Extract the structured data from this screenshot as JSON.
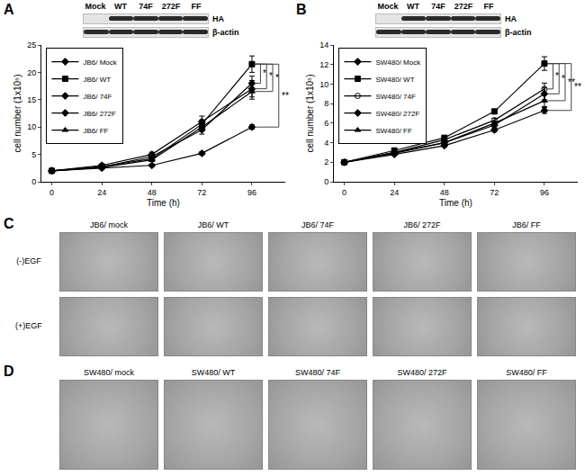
{
  "chart_data": [
    {
      "type": "line",
      "panel": "A",
      "x": [
        0,
        24,
        48,
        72,
        96
      ],
      "xlim": [
        -5,
        112
      ],
      "xticks": [
        0,
        24,
        48,
        72,
        96
      ],
      "ylim": [
        0,
        25
      ],
      "yticks": [
        0,
        5,
        10,
        15,
        20,
        25
      ],
      "x_label": "Time (h)",
      "y_label": "cell number (1x10⁵)",
      "legend": "upper left",
      "series": [
        {
          "name": "JB6/ Mock",
          "color": "#000000",
          "marker": "diamond",
          "values": [
            2,
            2.5,
            3,
            5.2,
            10
          ],
          "errors": [
            0.1,
            0.1,
            0.2,
            0.3,
            0.4
          ]
        },
        {
          "name": "JB6/ WT",
          "color": "#000000",
          "marker": "square",
          "values": [
            2,
            2.8,
            4.2,
            10.5,
            21.5
          ],
          "errors": [
            0.1,
            0.2,
            0.3,
            0.8,
            1.5
          ]
        },
        {
          "name": "JB6/ 74F",
          "color": "#000000",
          "marker": "diamond",
          "values": [
            2,
            2.7,
            4.6,
            9.5,
            18
          ],
          "errors": [
            0.1,
            0.2,
            0.4,
            0.8,
            1.3
          ]
        },
        {
          "name": "JB6/ 272F",
          "color": "#000000",
          "marker": "diamond",
          "values": [
            2,
            3,
            5,
            11,
            17
          ],
          "errors": [
            0.1,
            0.2,
            0.4,
            1,
            1.5
          ]
        },
        {
          "name": "JB6/ FF",
          "color": "#000000",
          "marker": "triangle-up",
          "values": [
            2,
            2.6,
            4,
            10,
            16.5
          ],
          "errors": [
            0.1,
            0.2,
            0.3,
            0.7,
            1.4
          ]
        }
      ],
      "significance": [
        {
          "from": "JB6/ WT",
          "to": "JB6/ 74F",
          "label": "*"
        },
        {
          "from": "JB6/ WT",
          "to": "JB6/ 272F",
          "label": "*"
        },
        {
          "from": "JB6/ WT",
          "to": "JB6/ FF",
          "label": "*"
        },
        {
          "from": "JB6/ WT",
          "to": "JB6/ Mock",
          "label": "**"
        }
      ],
      "blot": {
        "lanes": [
          "Mock",
          "WT",
          "74F",
          "272F",
          "FF"
        ],
        "rows": [
          {
            "name": "HA",
            "bands": [
              false,
              true,
              true,
              true,
              true
            ]
          },
          {
            "name": "β-actin",
            "bands": [
              true,
              true,
              true,
              true,
              true
            ]
          }
        ]
      }
    },
    {
      "type": "line",
      "panel": "B",
      "x": [
        0,
        24,
        48,
        72,
        96
      ],
      "xlim": [
        -5,
        112
      ],
      "xticks": [
        0,
        24,
        48,
        72,
        96
      ],
      "ylim": [
        0,
        14
      ],
      "yticks": [
        0,
        2,
        4,
        6,
        8,
        10,
        12,
        14
      ],
      "x_label": "Time (h)",
      "y_label": "cell number (1x10⁵)",
      "legend": "upper left",
      "series": [
        {
          "name": "SW480/ Mock",
          "color": "#000000",
          "marker": "diamond",
          "values": [
            2,
            2.8,
            3.7,
            5.3,
            7.3
          ],
          "errors": [
            0.05,
            0.1,
            0.15,
            0.2,
            0.3
          ]
        },
        {
          "name": "SW480/ WT",
          "color": "#000000",
          "marker": "square",
          "values": [
            2,
            3.2,
            4.5,
            7.2,
            12.1
          ],
          "errors": [
            0.05,
            0.1,
            0.2,
            0.2,
            0.7
          ]
        },
        {
          "name": "SW480/ 74F",
          "color": "#000000",
          "marker": "circle-open",
          "values": [
            2,
            3,
            4.3,
            6.3,
            9.5
          ],
          "errors": [
            0.05,
            0.1,
            0.2,
            0.2,
            0.6
          ]
        },
        {
          "name": "SW480/ 272F",
          "color": "#000000",
          "marker": "diamond",
          "values": [
            2,
            2.9,
            4,
            5.8,
            9
          ],
          "errors": [
            0.05,
            0.1,
            0.2,
            0.2,
            0.6
          ]
        },
        {
          "name": "SW480/ FF",
          "color": "#000000",
          "marker": "triangle-up",
          "values": [
            2,
            3,
            4,
            6,
            8.3
          ],
          "errors": [
            0.05,
            0.1,
            0.2,
            0.2,
            0.6
          ]
        }
      ],
      "significance": [
        {
          "from": "SW480/ WT",
          "to": "SW480/ 74F",
          "label": "*"
        },
        {
          "from": "SW480/ WT",
          "to": "SW480/ 272F",
          "label": "*"
        },
        {
          "from": "SW480/ WT",
          "to": "SW480/ FF",
          "label": "**"
        },
        {
          "from": "SW480/ WT",
          "to": "SW480/ Mock",
          "label": "**"
        }
      ],
      "blot": {
        "lanes": [
          "Mock",
          "WT",
          "74F",
          "272F",
          "FF"
        ],
        "rows": [
          {
            "name": "HA",
            "bands": [
              false,
              true,
              true,
              true,
              true
            ]
          },
          {
            "name": "β-actin",
            "bands": [
              true,
              true,
              true,
              true,
              true
            ]
          }
        ]
      }
    }
  ],
  "image_panels": [
    {
      "panel": "C",
      "columns": [
        "JB6/ mock",
        "JB6/ WT",
        "JB6/ 74F",
        "JB6/ 272F",
        "JB6/ FF"
      ],
      "rows": [
        "(-)EGF",
        "(+)EGF"
      ]
    },
    {
      "panel": "D",
      "columns": [
        "SW480/ mock",
        "SW480/ WT",
        "SW480/ 74F",
        "SW480/ 272F",
        "SW480/ FF"
      ]
    }
  ]
}
